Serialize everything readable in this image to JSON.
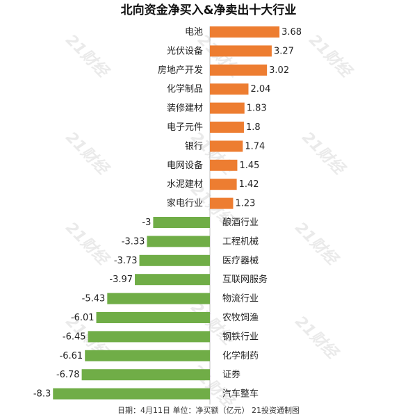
{
  "chart_data": {
    "type": "bar",
    "orientation": "horizontal",
    "title": "北向资金净买入&净卖出十大行业",
    "categories": [
      "电池",
      "光伏设备",
      "房地产开发",
      "化学制品",
      "装修建材",
      "电子元件",
      "银行",
      "电网设备",
      "水泥建材",
      "家电行业",
      "酿酒行业",
      "工程机械",
      "医疗器械",
      "互联网服务",
      "物流行业",
      "农牧饲渔",
      "钢铁行业",
      "化学制药",
      "证券",
      "汽车整车"
    ],
    "values": [
      3.68,
      3.27,
      3.02,
      2.04,
      1.83,
      1.8,
      1.74,
      1.45,
      1.42,
      1.23,
      -3,
      -3.33,
      -3.73,
      -3.97,
      -5.43,
      -6.01,
      -6.45,
      -6.61,
      -6.78,
      -8.3
    ],
    "value_labels": [
      "3.68",
      "3.27",
      "3.02",
      "2.04",
      "1.83",
      "1.8",
      "1.74",
      "1.45",
      "1.42",
      "1.23",
      "-3",
      "-3.33",
      "-3.73",
      "-3.97",
      "-5.43",
      "-6.01",
      "-6.45",
      "-6.61",
      "-6.78",
      "-8.3"
    ],
    "xlim": [
      -8.3,
      3.68
    ],
    "grid": false,
    "colors": {
      "positive": "#ed7d31",
      "negative": "#70ad47"
    },
    "footer": "日期：4月11日 单位：净买额（亿元） 21投资通制图",
    "watermark": "21财经"
  }
}
